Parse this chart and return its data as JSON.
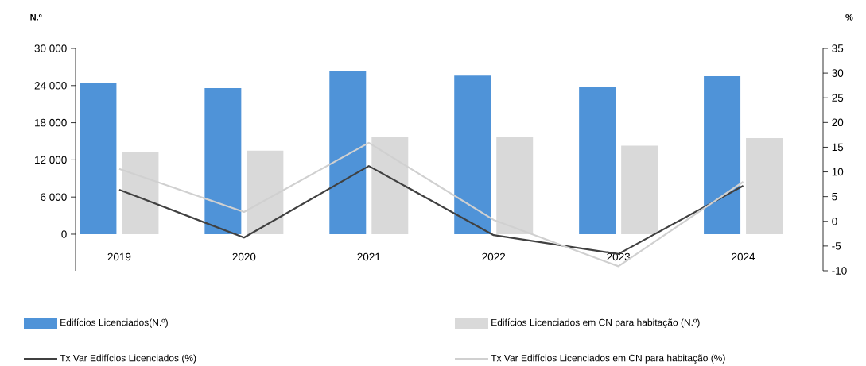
{
  "chart_data": {
    "type": "bar",
    "ylabel": "N.º",
    "y2label": "%",
    "categories": [
      "2019",
      "2020",
      "2021",
      "2022",
      "2023",
      "2024"
    ],
    "series": [
      {
        "name": "Edifícios Licenciados(N.º)",
        "color": "#4f93d8",
        "values": [
          24400,
          23600,
          26300,
          25600,
          23800,
          25500
        ]
      },
      {
        "name": "Edifícios Licenciados em CN para habitação (N.º)",
        "color": "#d9d9d9",
        "values": [
          13200,
          13500,
          15700,
          15700,
          14300,
          15500
        ]
      },
      {
        "name": "Tx Var Edifícios Licenciados (%)",
        "type": "line",
        "axis": "y2",
        "color": "#404040",
        "values": [
          6.4,
          -3.3,
          11.2,
          -2.8,
          -6.6,
          7.2
        ]
      },
      {
        "name": "Tx Var Edifícios Licenciados em CN para habitação (%)",
        "type": "line",
        "axis": "y2",
        "color": "#d0d0d0",
        "values": [
          10.6,
          1.9,
          15.9,
          0.3,
          -9.1,
          8.0
        ]
      }
    ],
    "ylim": [
      -5900,
      30000
    ],
    "yticks": [
      {
        "value": 0,
        "label": "0"
      },
      {
        "value": 6000,
        "label": "6 000"
      },
      {
        "value": 12000,
        "label": "12 000"
      },
      {
        "value": 18000,
        "label": "18 000"
      },
      {
        "value": 24000,
        "label": "24 000"
      },
      {
        "value": 30000,
        "label": "30 000"
      }
    ],
    "y2lim": [
      -10,
      35
    ],
    "y2ticks": [
      -10,
      -5,
      0,
      5,
      10,
      15,
      20,
      25,
      30,
      35
    ],
    "legend": "bottom"
  }
}
